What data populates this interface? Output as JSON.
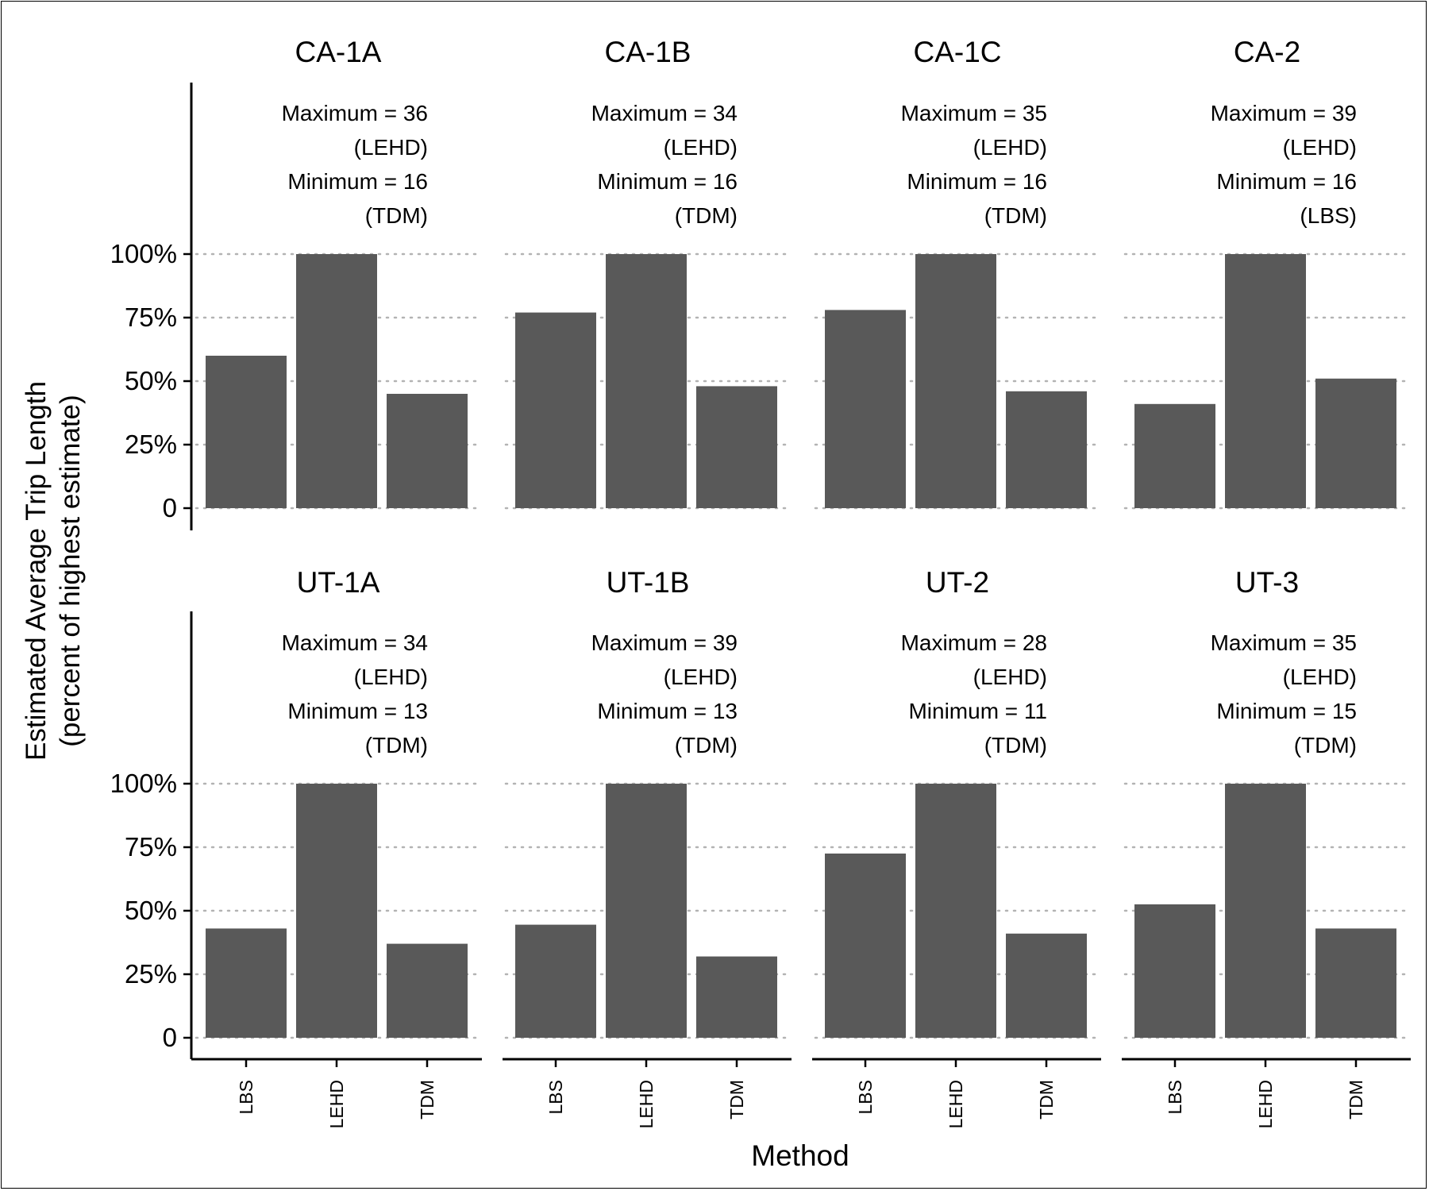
{
  "chart_data": {
    "type": "bar",
    "facet_layout": "2 rows x 4 columns",
    "xlabel": "Method",
    "ylabel": [
      "Estimated Average Trip Length",
      "(percent of highest estimate)"
    ],
    "categories": [
      "LBS",
      "LEHD",
      "TDM"
    ],
    "y_ticks": [
      "0",
      "25%",
      "50%",
      "75%",
      "100%"
    ],
    "ylim": [
      0,
      100
    ],
    "grid": "horizontal dotted",
    "bar_color": "#595959",
    "facets": [
      {
        "title": "CA-1A",
        "values": [
          60,
          100,
          45
        ],
        "annotation": [
          "Maximum = 36",
          "(LEHD)",
          "Minimum = 16",
          "(TDM)"
        ]
      },
      {
        "title": "CA-1B",
        "values": [
          77,
          100,
          48
        ],
        "annotation": [
          "Maximum = 34",
          "(LEHD)",
          "Minimum = 16",
          "(TDM)"
        ]
      },
      {
        "title": "CA-1C",
        "values": [
          78,
          100,
          46
        ],
        "annotation": [
          "Maximum = 35",
          "(LEHD)",
          "Minimum = 16",
          "(TDM)"
        ]
      },
      {
        "title": "CA-2",
        "values": [
          41,
          100,
          51
        ],
        "annotation": [
          "Maximum = 39",
          "(LEHD)",
          "Minimum = 16",
          "(LBS)"
        ]
      },
      {
        "title": "UT-1A",
        "values": [
          43,
          100,
          37
        ],
        "annotation": [
          "Maximum = 34",
          "(LEHD)",
          "Minimum = 13",
          "(TDM)"
        ]
      },
      {
        "title": "UT-1B",
        "values": [
          44.5,
          100,
          32
        ],
        "annotation": [
          "Maximum = 39",
          "(LEHD)",
          "Minimum = 13",
          "(TDM)"
        ]
      },
      {
        "title": "UT-2",
        "values": [
          72.5,
          100,
          41
        ],
        "annotation": [
          "Maximum = 28",
          "(LEHD)",
          "Minimum = 11",
          "(TDM)"
        ]
      },
      {
        "title": "UT-3",
        "values": [
          52.5,
          100,
          43
        ],
        "annotation": [
          "Maximum = 35",
          "(LEHD)",
          "Minimum = 15",
          "(TDM)"
        ]
      }
    ]
  }
}
